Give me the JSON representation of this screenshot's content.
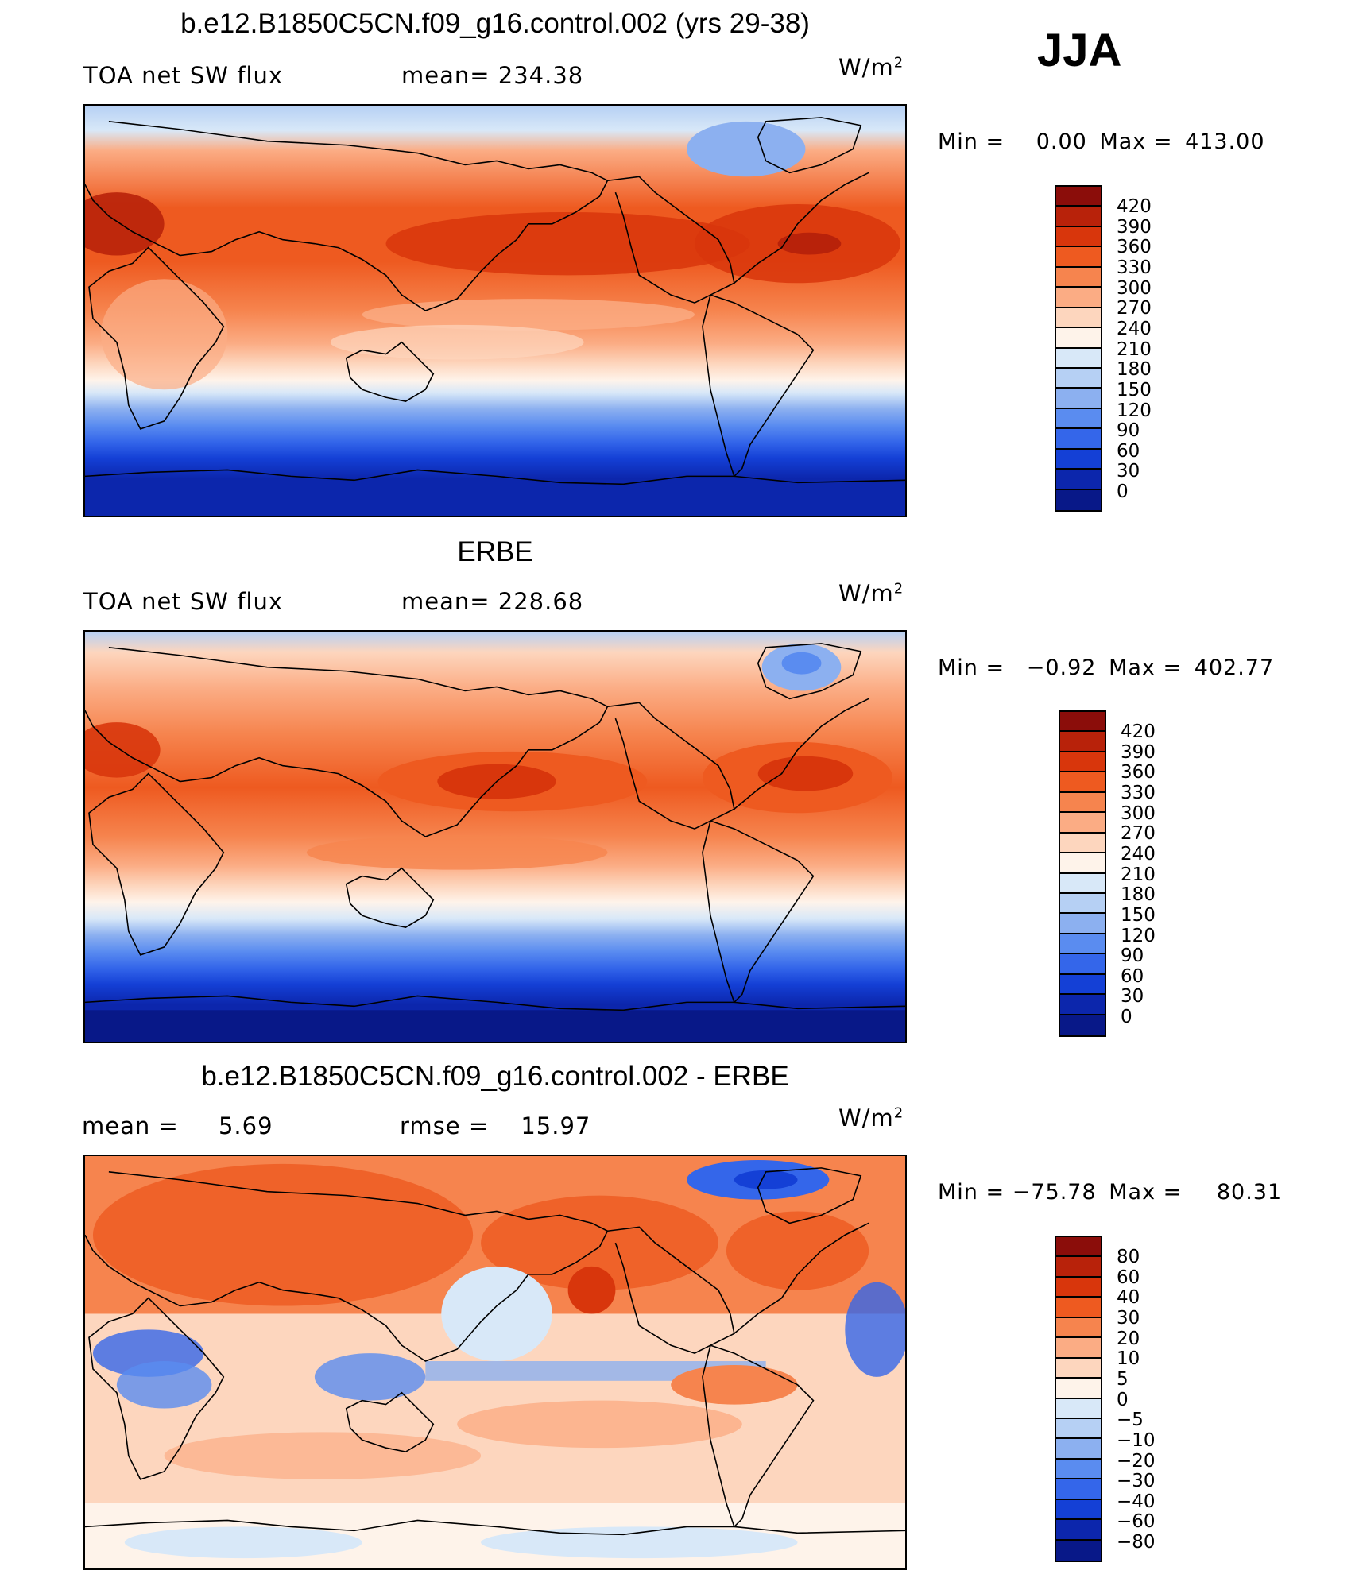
{
  "season": "JJA",
  "units": "W/m",
  "units_exp": "2",
  "panels": [
    {
      "title": "b.e12.B1850C5CN.f09_g16.control.002 (yrs 29-38)",
      "left_label": "TOA net SW flux",
      "stat_label": "mean=",
      "stat_value": "234.38",
      "min_label": "Min =",
      "min_value": "0.00",
      "max_label": "Max =",
      "max_value": "413.00",
      "levels": [
        "420",
        "390",
        "360",
        "330",
        "300",
        "270",
        "240",
        "210",
        "180",
        "150",
        "120",
        "90",
        "60",
        "30",
        "0"
      ]
    },
    {
      "title": "ERBE",
      "left_label": "TOA net SW flux",
      "stat_label": "mean=",
      "stat_value": "228.68",
      "min_label": "Min =",
      "min_value": "−0.92",
      "max_label": "Max =",
      "max_value": "402.77",
      "levels": [
        "420",
        "390",
        "360",
        "330",
        "300",
        "270",
        "240",
        "210",
        "180",
        "150",
        "120",
        "90",
        "60",
        "30",
        "0"
      ]
    },
    {
      "title": "b.e12.B1850C5CN.f09_g16.control.002 - ERBE",
      "left_label": "mean =",
      "left_value": "5.69",
      "stat_label": "rmse =",
      "stat_value": "15.97",
      "min_label": "Min =",
      "min_value": "−75.78",
      "max_label": "Max =",
      "max_value": "80.31",
      "levels": [
        "80",
        "60",
        "40",
        "30",
        "20",
        "10",
        "5",
        "0",
        "−5",
        "−10",
        "−20",
        "−30",
        "−40",
        "−60",
        "−80"
      ]
    }
  ],
  "colors": {
    "abs_scale": [
      "#8b0d0a",
      "#b8220a",
      "#d8360c",
      "#ee5a20",
      "#f6844e",
      "#fbac84",
      "#fdd6be",
      "#fef3ea",
      "#d8e8f8",
      "#b6d0f4",
      "#8cb0f0",
      "#5a8cf0",
      "#3466ea",
      "#1440d6",
      "#0c26ac",
      "#081888"
    ],
    "diff_scale": [
      "#8b0d0a",
      "#b8220a",
      "#d8360c",
      "#ee5a20",
      "#f6844e",
      "#fbac84",
      "#fdd6be",
      "#fef3ea",
      "#d8e8f8",
      "#b6d0f4",
      "#8cb0f0",
      "#5a8cf0",
      "#3466ea",
      "#1440d6",
      "#0c26ac",
      "#081888"
    ]
  }
}
